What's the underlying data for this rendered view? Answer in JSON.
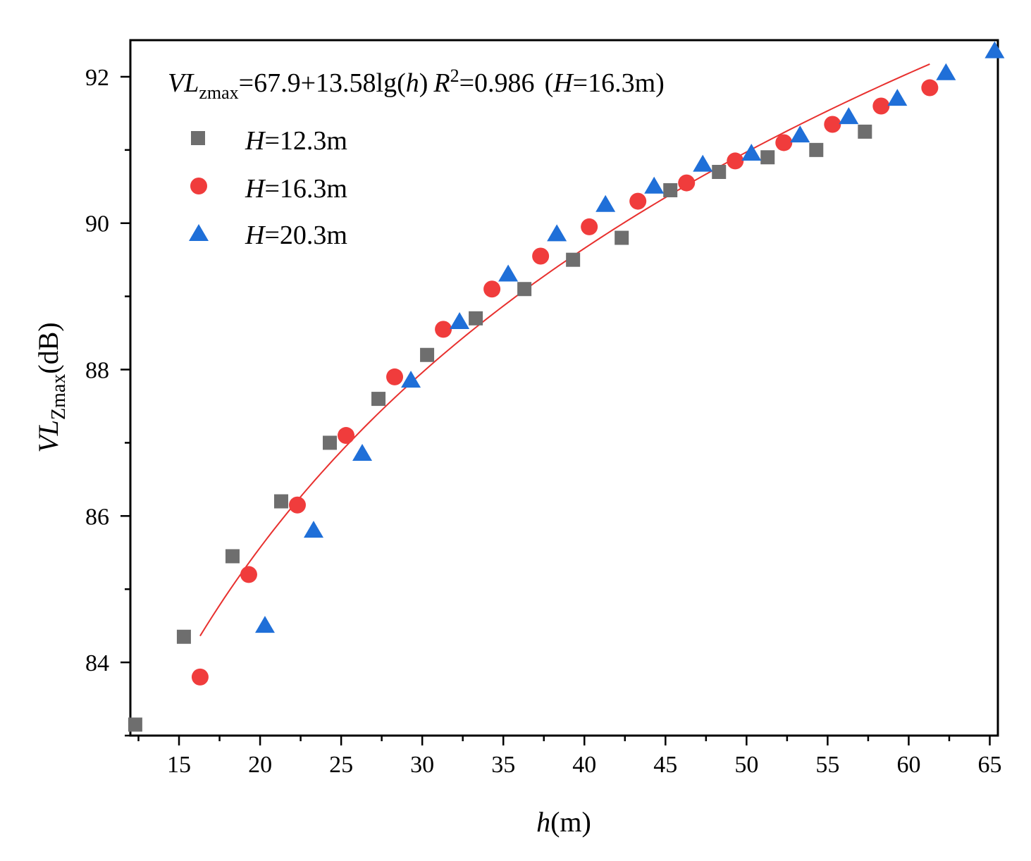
{
  "chart_data": {
    "type": "scatter",
    "title": "",
    "xlabel": "h(m)",
    "xlabel_parts": {
      "var": "h",
      "unit": "(m)"
    },
    "ylabel": "VLZmax(dB)",
    "ylabel_parts": {
      "var": "VL",
      "sub": "Zmax",
      "unit": "(dB)"
    },
    "xlim": [
      12,
      65.5
    ],
    "ylim": [
      83,
      92.5
    ],
    "x_ticks": [
      15,
      20,
      25,
      30,
      35,
      40,
      45,
      50,
      55,
      60,
      65
    ],
    "y_ticks": [
      84,
      86,
      88,
      90,
      92
    ],
    "grid": false,
    "legend_position": "top-left",
    "annotation": {
      "text": "VLzmax=67.9+13.58lg(h) R2=0.986 (H=16.3m)",
      "var": "VL",
      "sub": "zmax",
      "eq": "=67.9+13.58lg(",
      "h": "h",
      "close": ")",
      "r": "R",
      "sup": "2",
      "r2val": "=0.986",
      "hparen_open": "(",
      "H": "H",
      "hval": "=16.3m)"
    },
    "fit": {
      "name": "fit H=16.3m",
      "intercept": 67.9,
      "slope": 13.58,
      "x_range": [
        16.3,
        61.3
      ],
      "color": "#e8302e"
    },
    "series": [
      {
        "name": "H=12.3m",
        "legend_var": "H",
        "legend_val": "=12.3m",
        "marker": "square",
        "color": "#6e6e6e",
        "x": [
          12.3,
          15.3,
          18.3,
          21.3,
          24.3,
          27.3,
          30.3,
          33.3,
          36.3,
          39.3,
          42.3,
          45.3,
          48.3,
          51.3,
          54.3,
          57.3
        ],
        "y": [
          83.15,
          84.35,
          85.45,
          86.2,
          87.0,
          87.6,
          88.2,
          88.7,
          89.1,
          89.5,
          89.8,
          90.45,
          90.7,
          90.9,
          91.0,
          91.25
        ]
      },
      {
        "name": "H=16.3m",
        "legend_var": "H",
        "legend_val": "=16.3m",
        "marker": "circle",
        "color": "#f03c3c",
        "x": [
          16.3,
          19.3,
          22.3,
          25.3,
          28.3,
          31.3,
          34.3,
          37.3,
          40.3,
          43.3,
          46.3,
          49.3,
          52.3,
          55.3,
          58.3,
          61.3
        ],
        "y": [
          83.8,
          85.2,
          86.15,
          87.1,
          87.9,
          88.55,
          89.1,
          89.55,
          89.95,
          90.3,
          90.55,
          90.85,
          91.1,
          91.35,
          91.6,
          91.85
        ]
      },
      {
        "name": "H=20.3m",
        "legend_var": "H",
        "legend_val": "=20.3m",
        "marker": "triangle",
        "color": "#1f6fd8",
        "x": [
          20.3,
          23.3,
          26.3,
          29.3,
          32.3,
          35.3,
          38.3,
          41.3,
          44.3,
          47.3,
          50.3,
          53.3,
          56.3,
          59.3,
          62.3,
          65.3
        ],
        "y": [
          84.5,
          85.8,
          86.85,
          87.85,
          88.65,
          89.3,
          89.85,
          90.25,
          90.5,
          90.8,
          90.95,
          91.2,
          91.45,
          91.7,
          92.05,
          92.35
        ]
      }
    ]
  }
}
